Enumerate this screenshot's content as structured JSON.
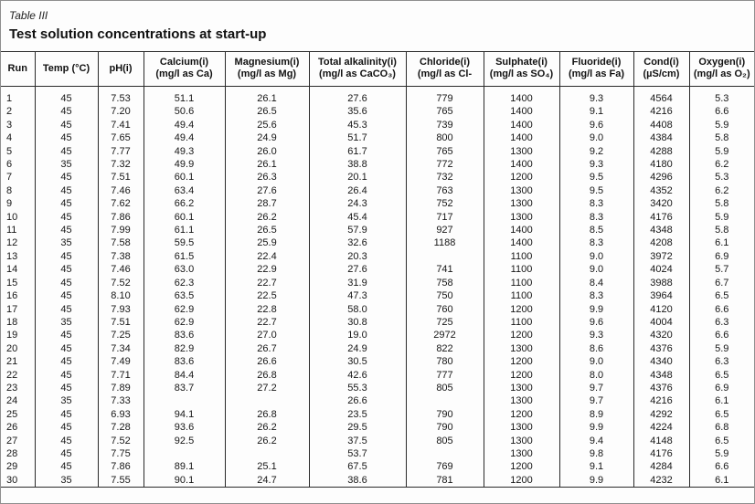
{
  "page": {
    "table_label": "Table III",
    "title": "Test solution concentrations at start-up"
  },
  "table": {
    "columns": [
      {
        "name": "Run",
        "unit": ""
      },
      {
        "name": "Temp (°C)",
        "unit": ""
      },
      {
        "name": "pH(i)",
        "unit": ""
      },
      {
        "name": "Calcium(i)",
        "unit": "(mg/l as Ca)"
      },
      {
        "name": "Magnesium(i)",
        "unit": "(mg/l as Mg)"
      },
      {
        "name": "Total alkalinity(i)",
        "unit": "(mg/l as CaCO₃)"
      },
      {
        "name": "Chloride(i)",
        "unit": "(mg/l as Cl-"
      },
      {
        "name": "Sulphate(i)",
        "unit": "(mg/l as SO₄)"
      },
      {
        "name": "Fluoride(i)",
        "unit": "(mg/l as Fa)"
      },
      {
        "name": "Cond(i)",
        "unit": "(µS/cm)"
      },
      {
        "name": "Oxygen(i)",
        "unit": "(mg/l as O₂)"
      }
    ],
    "rows": [
      [
        "1",
        "45",
        "7.53",
        "51.1",
        "26.1",
        "27.6",
        "779",
        "1400",
        "9.3",
        "4564",
        "5.3"
      ],
      [
        "2",
        "45",
        "7.20",
        "50.6",
        "26.5",
        "35.6",
        "765",
        "1400",
        "9.1",
        "4216",
        "6.6"
      ],
      [
        "3",
        "45",
        "7.41",
        "49.4",
        "25.6",
        "45.3",
        "739",
        "1400",
        "9.6",
        "4408",
        "5.9"
      ],
      [
        "4",
        "45",
        "7.65",
        "49.4",
        "24.9",
        "51.7",
        "800",
        "1400",
        "9.0",
        "4384",
        "5.8"
      ],
      [
        "5",
        "45",
        "7.77",
        "49.3",
        "26.0",
        "61.7",
        "765",
        "1300",
        "9.2",
        "4288",
        "5.9"
      ],
      [
        "6",
        "35",
        "7.32",
        "49.9",
        "26.1",
        "38.8",
        "772",
        "1400",
        "9.3",
        "4180",
        "6.2"
      ],
      [
        "7",
        "45",
        "7.51",
        "60.1",
        "26.3",
        "20.1",
        "732",
        "1200",
        "9.5",
        "4296",
        "5.3"
      ],
      [
        "8",
        "45",
        "7.46",
        "63.4",
        "27.6",
        "26.4",
        "763",
        "1300",
        "9.5",
        "4352",
        "6.2"
      ],
      [
        "9",
        "45",
        "7.62",
        "66.2",
        "28.7",
        "24.3",
        "752",
        "1300",
        "8.3",
        "3420",
        "5.8"
      ],
      [
        "10",
        "45",
        "7.86",
        "60.1",
        "26.2",
        "45.4",
        "717",
        "1300",
        "8.3",
        "4176",
        "5.9"
      ],
      [
        "11",
        "45",
        "7.99",
        "61.1",
        "26.5",
        "57.9",
        "927",
        "1400",
        "8.5",
        "4348",
        "5.8"
      ],
      [
        "12",
        "35",
        "7.58",
        "59.5",
        "25.9",
        "32.6",
        "1188",
        "1400",
        "8.3",
        "4208",
        "6.1"
      ],
      [
        "13",
        "45",
        "7.38",
        "61.5",
        "22.4",
        "20.3",
        "",
        "1100",
        "9.0",
        "3972",
        "6.9"
      ],
      [
        "14",
        "45",
        "7.46",
        "63.0",
        "22.9",
        "27.6",
        "741",
        "1100",
        "9.0",
        "4024",
        "5.7"
      ],
      [
        "15",
        "45",
        "7.52",
        "62.3",
        "22.7",
        "31.9",
        "758",
        "1100",
        "8.4",
        "3988",
        "6.7"
      ],
      [
        "16",
        "45",
        "8.10",
        "63.5",
        "22.5",
        "47.3",
        "750",
        "1100",
        "8.3",
        "3964",
        "6.5"
      ],
      [
        "17",
        "45",
        "7.93",
        "62.9",
        "22.8",
        "58.0",
        "760",
        "1200",
        "9.9",
        "4120",
        "6.6"
      ],
      [
        "18",
        "35",
        "7.51",
        "62.9",
        "22.7",
        "30.8",
        "725",
        "1100",
        "9.6",
        "4004",
        "6.3"
      ],
      [
        "19",
        "45",
        "7.25",
        "83.6",
        "27.0",
        "19.0",
        "2972",
        "1200",
        "9.3",
        "4320",
        "6.6"
      ],
      [
        "20",
        "45",
        "7.34",
        "82.9",
        "26.7",
        "24.9",
        "822",
        "1300",
        "8.6",
        "4376",
        "5.9"
      ],
      [
        "21",
        "45",
        "7.49",
        "83.6",
        "26.6",
        "30.5",
        "780",
        "1200",
        "9.0",
        "4340",
        "6.3"
      ],
      [
        "22",
        "45",
        "7.71",
        "84.4",
        "26.8",
        "42.6",
        "777",
        "1200",
        "8.0",
        "4348",
        "6.5"
      ],
      [
        "23",
        "45",
        "7.89",
        "83.7",
        "27.2",
        "55.3",
        "805",
        "1300",
        "9.7",
        "4376",
        "6.9"
      ],
      [
        "24",
        "35",
        "7.33",
        "",
        "",
        "26.6",
        "",
        "1300",
        "9.7",
        "4216",
        "6.1"
      ],
      [
        "25",
        "45",
        "6.93",
        "94.1",
        "26.8",
        "23.5",
        "790",
        "1200",
        "8.9",
        "4292",
        "6.5"
      ],
      [
        "26",
        "45",
        "7.28",
        "93.6",
        "26.2",
        "29.5",
        "790",
        "1300",
        "9.9",
        "4224",
        "6.8"
      ],
      [
        "27",
        "45",
        "7.52",
        "92.5",
        "26.2",
        "37.5",
        "805",
        "1300",
        "9.4",
        "4148",
        "6.5"
      ],
      [
        "28",
        "45",
        "7.75",
        "",
        "",
        "53.7",
        "",
        "1300",
        "9.8",
        "4176",
        "5.9"
      ],
      [
        "29",
        "45",
        "7.86",
        "89.1",
        "25.1",
        "67.5",
        "769",
        "1200",
        "9.1",
        "4284",
        "6.6"
      ],
      [
        "30",
        "35",
        "7.55",
        "90.1",
        "24.7",
        "38.6",
        "781",
        "1200",
        "9.9",
        "4232",
        "6.1"
      ]
    ]
  }
}
